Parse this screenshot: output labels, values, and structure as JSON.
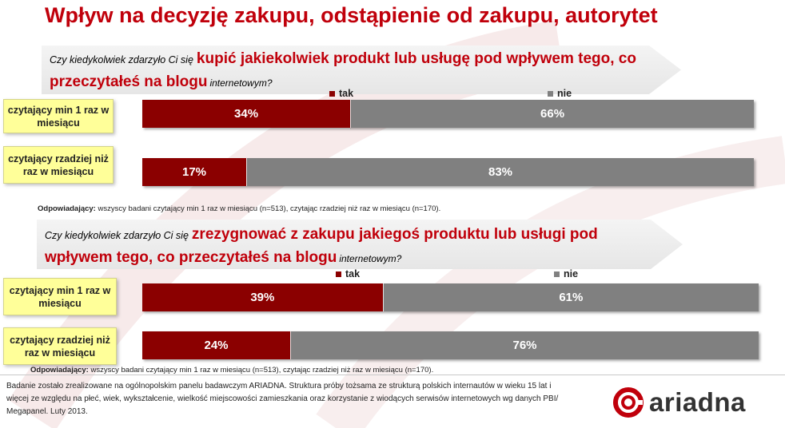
{
  "page": {
    "title": "Wpływ na decyzję zakupu, odstąpienie od zakupu, autorytet"
  },
  "colors": {
    "tak": "#8b0000",
    "nie": "#808080",
    "title": "#c0000b",
    "label_bg": "#ffff99"
  },
  "legend": {
    "tak": "tak",
    "nie": "nie"
  },
  "blocks": [
    {
      "question": {
        "lead": "Czy kiedykolwiek zdarzyło Ci się",
        "highlight": "kupić jakiekolwiek produkt lub usługę pod wpływem tego, co przeczytałeś na blogu",
        "tail": "internetowym?"
      },
      "footnote": {
        "label": "Odpowiadający:",
        "text": "wszyscy badani czytający min 1 raz w miesiącu (n=513), czytając rzadziej niż raz w miesiącu (n=170)."
      }
    },
    {
      "question": {
        "lead": "Czy kiedykolwiek zdarzyło Ci się",
        "highlight": "zrezygnować z zakupu jakiegoś produktu lub usługi pod wpływem tego, co przeczytałeś na blogu",
        "tail": "internetowym?"
      },
      "footnote": {
        "label": "Odpowiadający:",
        "text": "wszyscy badani czytający min 1 raz w miesiącu (n=513), czytając rzadziej niż raz w miesiącu (n=170)."
      }
    }
  ],
  "chart_data": [
    {
      "type": "bar",
      "orientation": "horizontal",
      "stacked": true,
      "normalized": true,
      "categories": [
        "czytający min 1 raz w miesiącu",
        "czytający rzadziej niż raz w miesiącu"
      ],
      "series": [
        {
          "name": "tak",
          "values": [
            34,
            17
          ],
          "labels": [
            "34%",
            "17%"
          ]
        },
        {
          "name": "nie",
          "values": [
            66,
            83
          ],
          "labels": [
            "66%",
            "83%"
          ]
        }
      ],
      "legend": "top"
    },
    {
      "type": "bar",
      "orientation": "horizontal",
      "stacked": true,
      "normalized": true,
      "categories": [
        "czytający min 1 raz w miesiącu",
        "czytający rzadziej niż raz w miesiącu"
      ],
      "series": [
        {
          "name": "tak",
          "values": [
            39,
            24
          ],
          "labels": [
            "39%",
            "24%"
          ]
        },
        {
          "name": "nie",
          "values": [
            61,
            76
          ],
          "labels": [
            "61%",
            "76%"
          ]
        }
      ],
      "legend": "top"
    }
  ],
  "footer": {
    "source_note": "Badanie zostało zrealizowane na ogólnopolskim panelu badawczym ARIADNA. Struktura próby tożsama ze strukturą polskich internautów w wieku 15 lat i więcej ze względu na płeć, wiek, wykształcenie, wielkość miejscowości zamieszkania oraz korzystanie z wiodących serwisów internetowych wg danych PBI/ Megapanel. Luty 2013.",
    "logo_text": "ariadna"
  }
}
